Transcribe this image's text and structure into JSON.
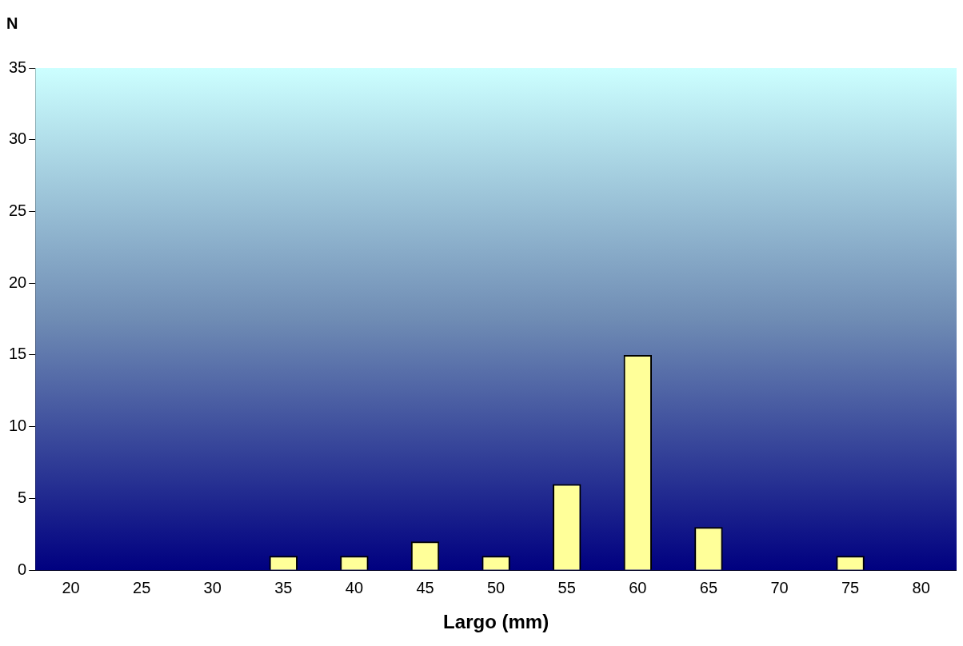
{
  "chart_data": {
    "type": "bar",
    "ylabel": "N",
    "xlabel": "Largo (mm)",
    "categories": [
      "20",
      "25",
      "30",
      "35",
      "40",
      "45",
      "50",
      "55",
      "60",
      "65",
      "70",
      "75",
      "80"
    ],
    "values": [
      0,
      0,
      0,
      1,
      1,
      2,
      1,
      6,
      15,
      3,
      0,
      1,
      0
    ],
    "color": "#ffff99",
    "ylim": [
      0,
      35
    ],
    "yticks": [
      0,
      5,
      10,
      15,
      20,
      25,
      30,
      35
    ],
    "grid": false,
    "legend": false
  }
}
